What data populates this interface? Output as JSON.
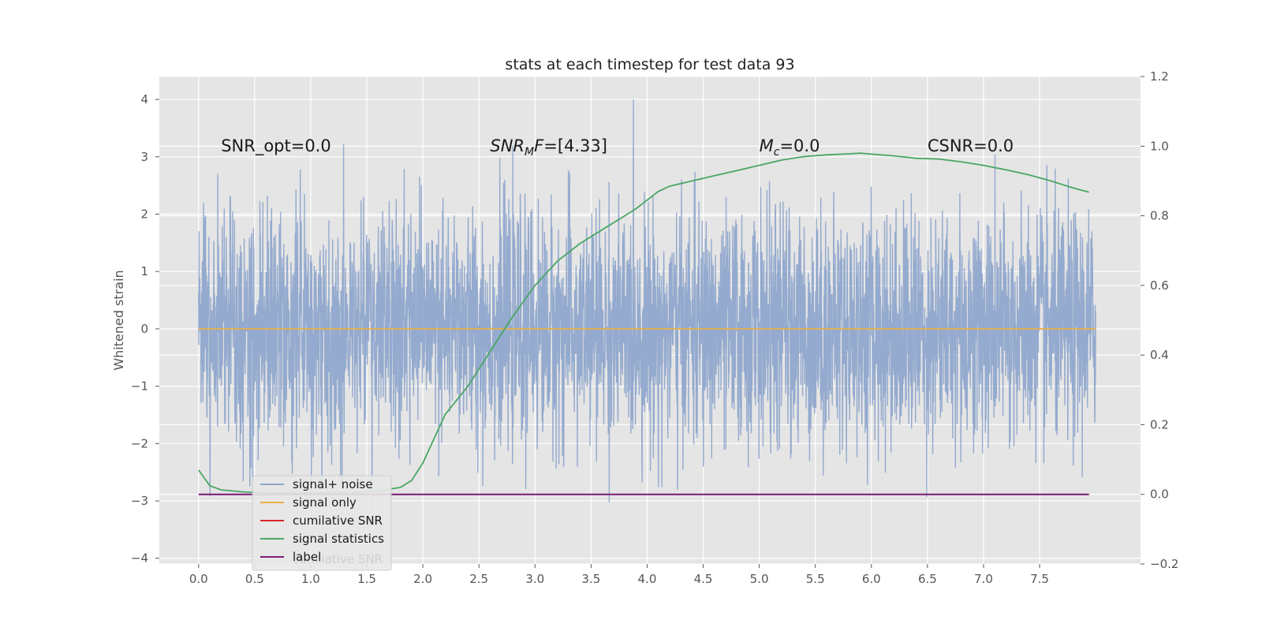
{
  "chart_data": {
    "type": "line",
    "title": "stats at each timestep for test data 93",
    "ylabel": "Whitened strain",
    "xlabel": "",
    "xlim": [
      -0.35,
      8.4
    ],
    "ylim": [
      -4.1,
      4.4
    ],
    "y2lim": [
      -0.2,
      1.2
    ],
    "grid": true,
    "x_ticks": [
      "0.0",
      "0.5",
      "1.0",
      "1.5",
      "2.0",
      "2.5",
      "3.0",
      "3.5",
      "4.0",
      "4.5",
      "5.0",
      "5.5",
      "6.0",
      "6.5",
      "7.0",
      "7.5"
    ],
    "y_ticks": [
      "4",
      "3",
      "2",
      "1",
      "0",
      "−1",
      "−2",
      "−3",
      "−4"
    ],
    "y2_ticks": [
      "1.2",
      "1.0",
      "0.8",
      "0.6",
      "0.4",
      "0.2",
      "0.0",
      "−0.2"
    ],
    "annotations": [
      {
        "text": "SNR_opt=0.0",
        "x": 0.2,
        "y": 3.2
      },
      {
        "text": "SNR",
        "sub": "M",
        "suffix": "F=[4.33]",
        "x": 2.6,
        "y": 3.2
      },
      {
        "text": "M",
        "sub": "c",
        "suffix": "=0.0",
        "x": 5.0,
        "y": 3.2
      },
      {
        "text": "CSNR=0.0",
        "x": 6.5,
        "y": 3.2
      }
    ],
    "series": [
      {
        "name": "signal+ noise",
        "axis": "left",
        "color": "#8fa6cc",
        "kind": "noise",
        "x_start": 0.0,
        "x_end": 8.0,
        "amplitude_sd": 1.0
      },
      {
        "name": "signal only",
        "axis": "left",
        "color": "#e8b04a",
        "x": [
          0.0,
          8.0
        ],
        "values": [
          0.0,
          0.0
        ]
      },
      {
        "name": "cumilative SNR",
        "axis": "right",
        "color": "#d62728",
        "x": [],
        "values": []
      },
      {
        "name": "signal statistics",
        "axis": "right",
        "color": "#4aa564",
        "x": [
          0.0,
          0.1,
          0.2,
          0.4,
          0.6,
          0.8,
          1.0,
          1.2,
          1.4,
          1.6,
          1.8,
          1.9,
          2.0,
          2.1,
          2.2,
          2.4,
          2.6,
          2.8,
          3.0,
          3.2,
          3.4,
          3.6,
          3.8,
          3.9,
          4.0,
          4.1,
          4.2,
          4.4,
          4.6,
          4.8,
          5.0,
          5.2,
          5.4,
          5.6,
          5.8,
          5.9,
          6.0,
          6.2,
          6.4,
          6.6,
          6.8,
          7.0,
          7.2,
          7.4,
          7.6,
          7.8,
          7.94
        ],
        "values": [
          0.07,
          0.025,
          0.013,
          0.007,
          0.005,
          0.004,
          0.004,
          0.004,
          0.006,
          0.01,
          0.02,
          0.04,
          0.09,
          0.16,
          0.23,
          0.31,
          0.41,
          0.51,
          0.6,
          0.67,
          0.72,
          0.76,
          0.8,
          0.82,
          0.845,
          0.87,
          0.885,
          0.9,
          0.915,
          0.93,
          0.945,
          0.96,
          0.97,
          0.975,
          0.978,
          0.98,
          0.977,
          0.972,
          0.965,
          0.963,
          0.955,
          0.945,
          0.932,
          0.918,
          0.9,
          0.88,
          0.868
        ]
      },
      {
        "name": "label",
        "axis": "right",
        "color": "#7b1a78",
        "x": [
          0.0,
          7.94
        ],
        "values": [
          0.0,
          0.0
        ]
      }
    ],
    "legend": {
      "placement": "lower-left",
      "ghost_text": "cumilative SNR"
    }
  }
}
